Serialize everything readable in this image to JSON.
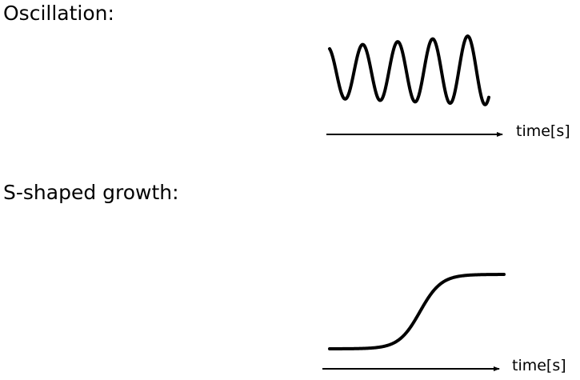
{
  "sections": [
    {
      "title": "Oscillation:",
      "axis_label": "time[s]",
      "curve": "oscillation"
    },
    {
      "title": "S-shaped growth:",
      "axis_label": "time[s]",
      "curve": "s-shaped"
    }
  ],
  "colors": {
    "stroke": "#000000",
    "background": "#ffffff"
  }
}
